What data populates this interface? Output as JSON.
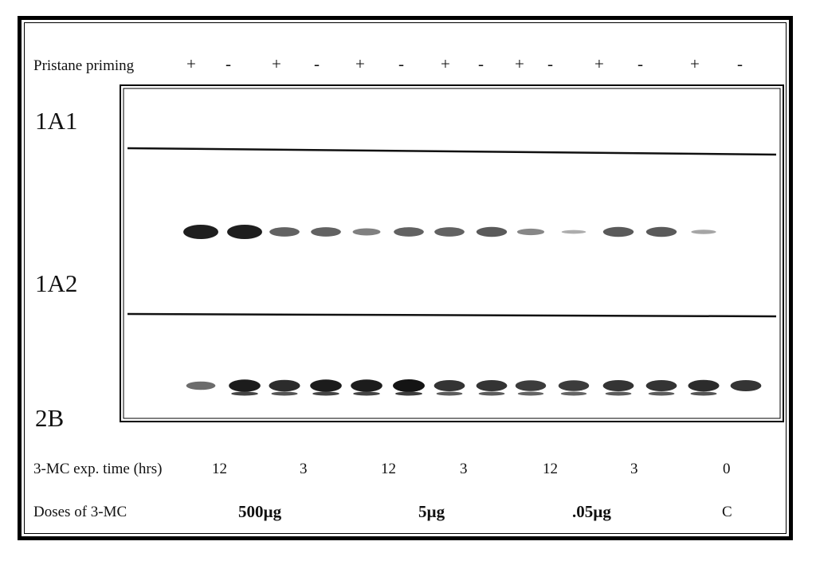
{
  "row_labels": {
    "priming": "Pristane priming",
    "exposure": "3-MC exp. time (hrs)",
    "doses": "Doses of 3-MC"
  },
  "priming_signs": [
    "+",
    "-",
    "+",
    "-",
    "+",
    "-",
    "+",
    "-",
    "+",
    "-",
    "+",
    "-",
    "+",
    "-"
  ],
  "band_labels": [
    "1A1",
    "1A2",
    "2B"
  ],
  "exposure_times": [
    "12",
    "3",
    "12",
    "3",
    "12",
    "3",
    "0"
  ],
  "doses": [
    "500µg",
    "5µg",
    ".05µg",
    "C"
  ],
  "gel": {
    "lanes": 14,
    "band_1A2_intensity": [
      1.0,
      1.0,
      0.55,
      0.55,
      0.35,
      0.55,
      0.55,
      0.6,
      0.3,
      0.05,
      0.6,
      0.6,
      0.1,
      0.0
    ],
    "band_2B_intensity": [
      0.45,
      0.95,
      0.85,
      0.95,
      0.95,
      1.0,
      0.8,
      0.8,
      0.75,
      0.75,
      0.8,
      0.8,
      0.85,
      0.8
    ]
  }
}
